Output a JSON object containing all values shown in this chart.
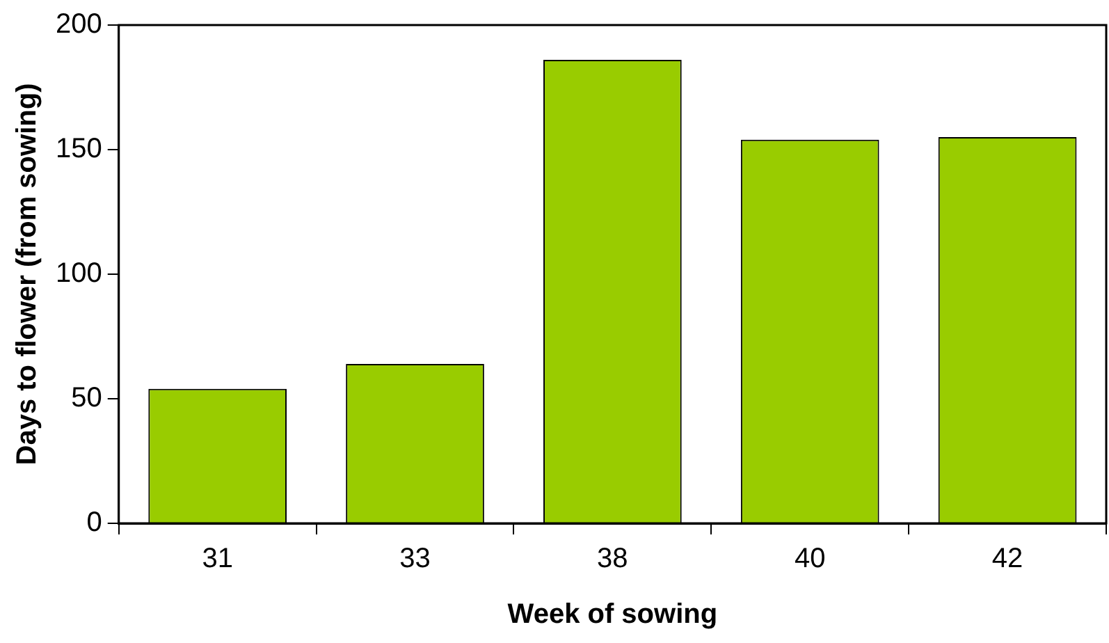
{
  "chart_data": {
    "type": "bar",
    "xlabel": "Week of sowing",
    "ylabel": "Days to flower (from sowing)",
    "categories": [
      "31",
      "33",
      "38",
      "40",
      "42"
    ],
    "values": [
      54,
      64,
      186,
      154,
      155
    ],
    "color": "#99cc00",
    "ylim": [
      0,
      200
    ],
    "yticks": [
      0,
      50,
      100,
      150,
      200
    ],
    "grid": false,
    "legend": false
  }
}
